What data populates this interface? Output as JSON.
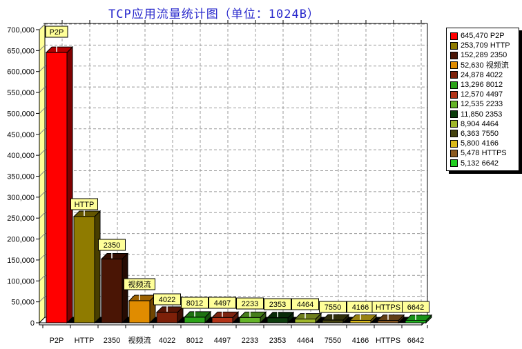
{
  "title": "TCP应用流量统计图（单位：1024B）",
  "title_color": "#2929CC",
  "chart_data": {
    "type": "bar",
    "style": "3d-column",
    "title": "TCP应用流量统计图（单位：1024B）",
    "unit": "1024B",
    "categories": [
      "P2P",
      "HTTP",
      "2350",
      "视频流",
      "4022",
      "8012",
      "4497",
      "2233",
      "2353",
      "4464",
      "7550",
      "4166",
      "HTTPS",
      "6642"
    ],
    "values": [
      645470,
      253709,
      152289,
      52630,
      24878,
      13296,
      12570,
      12535,
      11850,
      8904,
      6363,
      5800,
      5478,
      5132
    ],
    "colors": [
      "#FF0000",
      "#8F7B00",
      "#4A1505",
      "#E08C00",
      "#7D2009",
      "#2BA318",
      "#B23318",
      "#64B428",
      "#0C3D0C",
      "#9FB62A",
      "#45430F",
      "#D9B919",
      "#8B5A20",
      "#22CF22"
    ],
    "bar_value_labels": [
      "P2P",
      "HTTP",
      "2350",
      "视频流",
      "4022",
      "8012",
      "4497",
      "2233",
      "2353",
      "4464",
      "7550",
      "4166",
      "HTTPS",
      "6642"
    ],
    "xlabel": "",
    "ylabel": "",
    "ylim": [
      0,
      700000
    ],
    "ytick_step": 50000,
    "ytick_labels": [
      "0",
      "50,000",
      "100,000",
      "150,000",
      "200,000",
      "250,000",
      "300,000",
      "350,000",
      "400,000",
      "450,000",
      "500,000",
      "550,000",
      "600,000",
      "650,000",
      "700,000"
    ],
    "grid": true,
    "grid_style": "dashed",
    "legend_position": "right"
  },
  "legend": {
    "items": [
      {
        "label": "645,470 P2P",
        "color": "#FF0000"
      },
      {
        "label": "253,709 HTTP",
        "color": "#8F7B00"
      },
      {
        "label": "152,289 2350",
        "color": "#4A1505"
      },
      {
        "label": "52,630 视频流",
        "color": "#E08C00"
      },
      {
        "label": "24,878 4022",
        "color": "#7D2009"
      },
      {
        "label": "13,296 8012",
        "color": "#2BA318"
      },
      {
        "label": "12,570 4497",
        "color": "#B23318"
      },
      {
        "label": "12,535 2233",
        "color": "#64B428"
      },
      {
        "label": "11,850 2353",
        "color": "#0C3D0C"
      },
      {
        "label": "8,904 4464",
        "color": "#9FB62A"
      },
      {
        "label": "6,363 7550",
        "color": "#45430F"
      },
      {
        "label": "5,800 4166",
        "color": "#D9B919"
      },
      {
        "label": "5,478 HTTPS",
        "color": "#8B5A20"
      },
      {
        "label": "5,132 6642",
        "color": "#22CF22"
      }
    ]
  },
  "style_colors": {
    "wall_fill": "#FFFF99",
    "label_box_fill": "#FFFF99",
    "gridline": "#999999",
    "axis": "#000000"
  }
}
